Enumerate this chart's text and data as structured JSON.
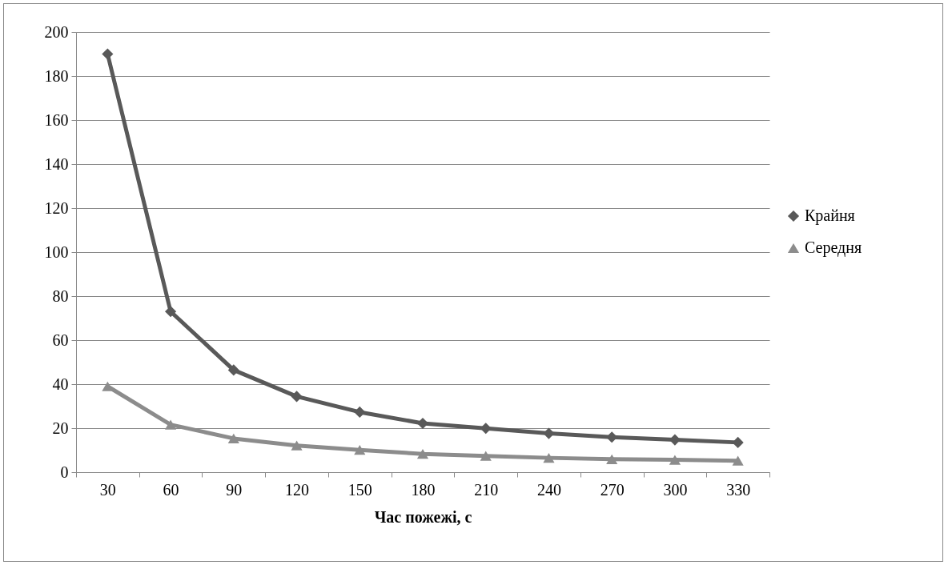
{
  "chart_data": {
    "type": "line",
    "xlabel": "Час пожежі, с",
    "categories": [
      "30",
      "60",
      "90",
      "120",
      "150",
      "180",
      "210",
      "240",
      "270",
      "300",
      "330"
    ],
    "series": [
      {
        "name": "Крайня",
        "color": "#595959",
        "marker": "diamond",
        "values": [
          190,
          73,
          46.4,
          34.4,
          27.3,
          22.2,
          19.9,
          17.6,
          15.9,
          14.7,
          13.5
        ]
      },
      {
        "name": "Середня",
        "color": "#8c8c8c",
        "marker": "triangle",
        "values": [
          39,
          21.6,
          15.3,
          12.1,
          10.1,
          8.3,
          7.4,
          6.5,
          5.9,
          5.6,
          5.2
        ]
      }
    ],
    "ylim": [
      0,
      200
    ],
    "yticks": [
      0,
      20,
      40,
      60,
      80,
      100,
      120,
      140,
      160,
      180,
      200
    ],
    "grid": "y",
    "legend": "right"
  }
}
